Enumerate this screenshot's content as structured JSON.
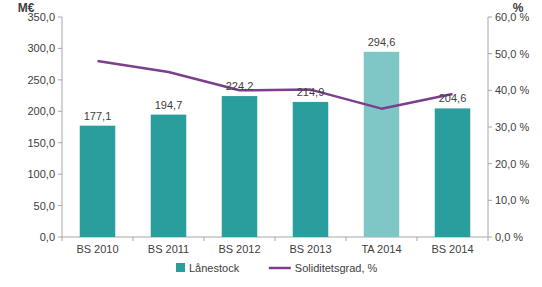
{
  "chart_data": {
    "type": "bar",
    "ylabel": "M€",
    "y2label": "%",
    "categories": [
      "BS 2010",
      "BS 2011",
      "BS 2012",
      "BS 2013",
      "TA 2014",
      "BS 2014"
    ],
    "series": [
      {
        "name": "Lånestock",
        "type": "bar",
        "colors": [
          "#2a9d9d",
          "#2a9d9d",
          "#2a9d9d",
          "#2a9d9d",
          "#7fc7c7",
          "#2a9d9d"
        ],
        "values": [
          177.1,
          194.7,
          224.2,
          214.9,
          294.6,
          204.6
        ],
        "value_labels": [
          "177,1",
          "194,7",
          "224,2",
          "214,9",
          "294,6",
          "204,6"
        ],
        "data_labels": true
      },
      {
        "name": "Soliditetsgrad, %",
        "type": "line",
        "color": "#7b3f8c",
        "axis": "y2",
        "values": [
          48.0,
          45.0,
          40.0,
          40.2,
          35.0,
          39.0
        ]
      }
    ],
    "ylim": [
      0,
      350
    ],
    "yticks": [
      {
        "value": 0,
        "label": "0,0"
      },
      {
        "value": 50,
        "label": "50,0"
      },
      {
        "value": 100,
        "label": "100,0"
      },
      {
        "value": 150,
        "label": "150,0"
      },
      {
        "value": 200,
        "label": "200,0"
      },
      {
        "value": 250,
        "label": "250,0"
      },
      {
        "value": 300,
        "label": "300,0"
      },
      {
        "value": 350,
        "label": "350,0"
      }
    ],
    "y2lim": [
      0,
      60
    ],
    "y2ticks": [
      {
        "value": 0,
        "label": "0,0 %"
      },
      {
        "value": 10,
        "label": "10,0 %"
      },
      {
        "value": 20,
        "label": "20,0 %"
      },
      {
        "value": 30,
        "label": "30,0 %"
      },
      {
        "value": 40,
        "label": "40,0 %"
      },
      {
        "value": 50,
        "label": "50,0 %"
      },
      {
        "value": 60,
        "label": "60,0 %"
      }
    ],
    "grid": false,
    "legend": "bottom"
  }
}
